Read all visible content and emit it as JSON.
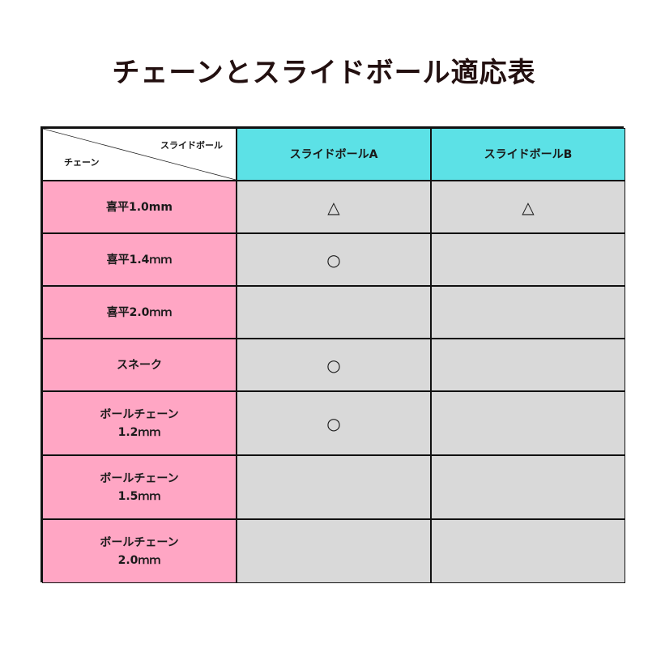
{
  "title": "チェーンとスライドボール適応表",
  "table": {
    "corner_top": "スライドボール",
    "corner_bottom": "チェーン",
    "columns": [
      "スライドボールA",
      "スライドボールB"
    ],
    "rows": [
      {
        "label": "喜平1.0mm",
        "a": "△",
        "b": "△"
      },
      {
        "label": "喜平1.4ｍｍ",
        "a": "○",
        "b": ""
      },
      {
        "label": "喜平2.0ｍｍ",
        "a": "",
        "b": ""
      },
      {
        "label": "スネーク",
        "a": "○",
        "b": ""
      },
      {
        "label": "ボールチェーン\n1.2ｍｍ",
        "a": "○",
        "b": ""
      },
      {
        "label": "ボールチェーン\n1.5ｍｍ",
        "a": "",
        "b": ""
      },
      {
        "label": "ボールチェーン\n2.0ｍｍ",
        "a": "",
        "b": ""
      }
    ]
  },
  "colors": {
    "header": "#5ce1e6",
    "row_label": "#ffa6c4",
    "value_cell": "#d9d9d9",
    "title": "#231010"
  }
}
